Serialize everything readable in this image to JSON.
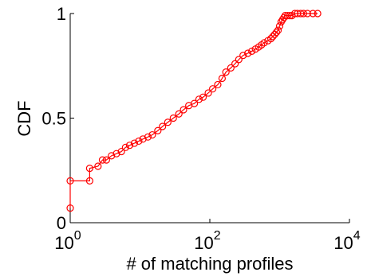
{
  "chart_data": {
    "type": "line",
    "xlabel": "# of matching profiles",
    "ylabel": "CDF",
    "x_scale": "log",
    "xlim": [
      1,
      10000
    ],
    "ylim": [
      0,
      1
    ],
    "grid": false,
    "x_ticks": [
      {
        "value": 1,
        "base": "10",
        "exp": "0"
      },
      {
        "value": 100,
        "base": "10",
        "exp": "2"
      },
      {
        "value": 10000,
        "base": "10",
        "exp": "4"
      }
    ],
    "y_ticks": [
      {
        "value": 0,
        "label": "0"
      },
      {
        "value": 0.5,
        "label": "0.5"
      },
      {
        "value": 1,
        "label": "1"
      }
    ],
    "series_color": "#ff0000",
    "series": [
      {
        "x": [
          1.0,
          1.0,
          1.9,
          1.9,
          2.5,
          2.9,
          3.3,
          3.9,
          4.6,
          5.4,
          6.2,
          7.1,
          8.3,
          9.6,
          11,
          13,
          15,
          18,
          21,
          25,
          30,
          36,
          42,
          50,
          60,
          70,
          80,
          95,
          110,
          130,
          150,
          170,
          200,
          230,
          260,
          300,
          350,
          400,
          450,
          500,
          550,
          600,
          680,
          750,
          800,
          850,
          900,
          950,
          1000,
          1050,
          1100,
          1150,
          1200,
          1300,
          1400,
          1500,
          1650,
          1800,
          2000,
          2200,
          2500,
          3000,
          3500
        ],
        "y": [
          0.07,
          0.2,
          0.2,
          0.26,
          0.27,
          0.3,
          0.3,
          0.32,
          0.33,
          0.34,
          0.36,
          0.37,
          0.38,
          0.39,
          0.4,
          0.41,
          0.42,
          0.44,
          0.46,
          0.48,
          0.5,
          0.52,
          0.54,
          0.56,
          0.57,
          0.59,
          0.6,
          0.62,
          0.64,
          0.66,
          0.69,
          0.72,
          0.74,
          0.76,
          0.78,
          0.8,
          0.81,
          0.82,
          0.83,
          0.84,
          0.85,
          0.86,
          0.87,
          0.88,
          0.89,
          0.9,
          0.91,
          0.92,
          0.94,
          0.96,
          0.97,
          0.98,
          0.99,
          0.99,
          0.99,
          0.99,
          1.0,
          1.0,
          1.0,
          1.0,
          1.0,
          1.0,
          1.0
        ]
      }
    ]
  }
}
